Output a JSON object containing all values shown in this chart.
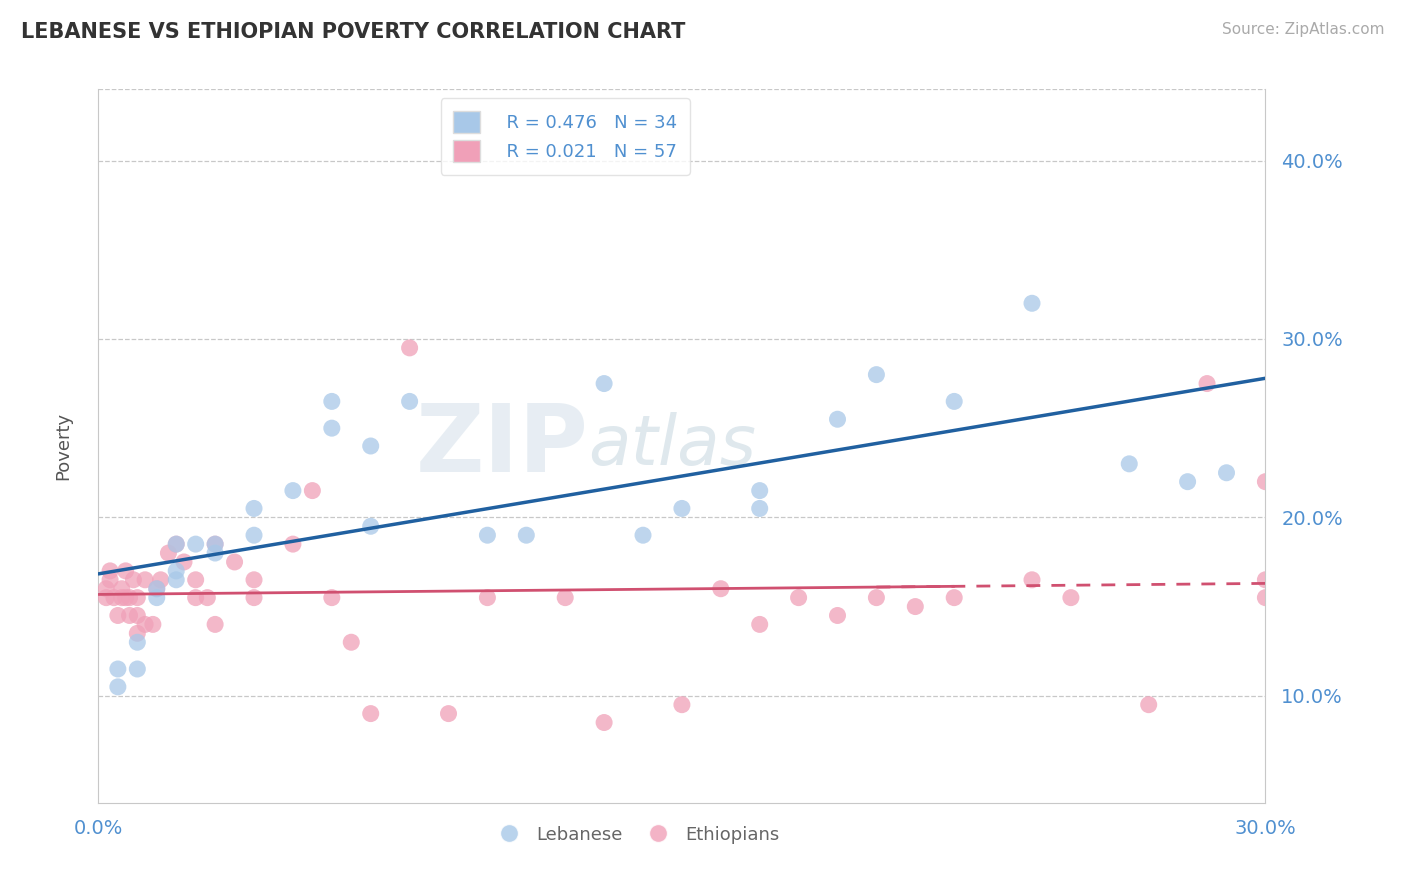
{
  "title": "LEBANESE VS ETHIOPIAN POVERTY CORRELATION CHART",
  "source": "Source: ZipAtlas.com",
  "ylabel": "Poverty",
  "xlim": [
    0.0,
    0.3
  ],
  "ylim": [
    0.04,
    0.44
  ],
  "yticks": [
    0.1,
    0.2,
    0.3,
    0.4
  ],
  "ytick_labels": [
    "10.0%",
    "20.0%",
    "30.0%",
    "40.0%"
  ],
  "xtick_left": "0.0%",
  "xtick_right": "30.0%",
  "grid_color": "#c8c8c8",
  "background_color": "#ffffff",
  "watermark_zip": "ZIP",
  "watermark_atlas": "atlas",
  "legend_R1": "R = 0.476",
  "legend_N1": "N = 34",
  "legend_R2": "R = 0.021",
  "legend_N2": "N = 57",
  "blue_color": "#a8c8e8",
  "pink_color": "#f0a0b8",
  "blue_line_color": "#2060a0",
  "pink_line_color": "#d05070",
  "tick_color": "#5090d0",
  "lebanese_x": [
    0.005,
    0.005,
    0.01,
    0.01,
    0.015,
    0.015,
    0.02,
    0.02,
    0.02,
    0.025,
    0.03,
    0.03,
    0.04,
    0.04,
    0.05,
    0.06,
    0.06,
    0.07,
    0.07,
    0.08,
    0.1,
    0.11,
    0.13,
    0.14,
    0.15,
    0.17,
    0.17,
    0.19,
    0.2,
    0.22,
    0.24,
    0.265,
    0.28,
    0.29
  ],
  "lebanese_y": [
    0.115,
    0.105,
    0.13,
    0.115,
    0.155,
    0.16,
    0.165,
    0.17,
    0.185,
    0.185,
    0.18,
    0.185,
    0.205,
    0.19,
    0.215,
    0.25,
    0.265,
    0.195,
    0.24,
    0.265,
    0.19,
    0.19,
    0.275,
    0.19,
    0.205,
    0.205,
    0.215,
    0.255,
    0.28,
    0.265,
    0.32,
    0.23,
    0.22,
    0.225
  ],
  "ethiopian_x": [
    0.002,
    0.002,
    0.003,
    0.003,
    0.004,
    0.005,
    0.006,
    0.006,
    0.007,
    0.007,
    0.008,
    0.008,
    0.009,
    0.01,
    0.01,
    0.01,
    0.012,
    0.012,
    0.014,
    0.015,
    0.016,
    0.018,
    0.02,
    0.022,
    0.025,
    0.025,
    0.028,
    0.03,
    0.03,
    0.035,
    0.04,
    0.04,
    0.05,
    0.055,
    0.06,
    0.065,
    0.07,
    0.08,
    0.09,
    0.1,
    0.12,
    0.13,
    0.15,
    0.16,
    0.17,
    0.18,
    0.19,
    0.2,
    0.21,
    0.22,
    0.24,
    0.25,
    0.27,
    0.285,
    0.3,
    0.3,
    0.3
  ],
  "ethiopian_y": [
    0.155,
    0.16,
    0.165,
    0.17,
    0.155,
    0.145,
    0.16,
    0.155,
    0.155,
    0.17,
    0.145,
    0.155,
    0.165,
    0.135,
    0.145,
    0.155,
    0.14,
    0.165,
    0.14,
    0.16,
    0.165,
    0.18,
    0.185,
    0.175,
    0.155,
    0.165,
    0.155,
    0.14,
    0.185,
    0.175,
    0.165,
    0.155,
    0.185,
    0.215,
    0.155,
    0.13,
    0.09,
    0.295,
    0.09,
    0.155,
    0.155,
    0.085,
    0.095,
    0.16,
    0.14,
    0.155,
    0.145,
    0.155,
    0.15,
    0.155,
    0.165,
    0.155,
    0.095,
    0.275,
    0.155,
    0.165,
    0.22
  ]
}
